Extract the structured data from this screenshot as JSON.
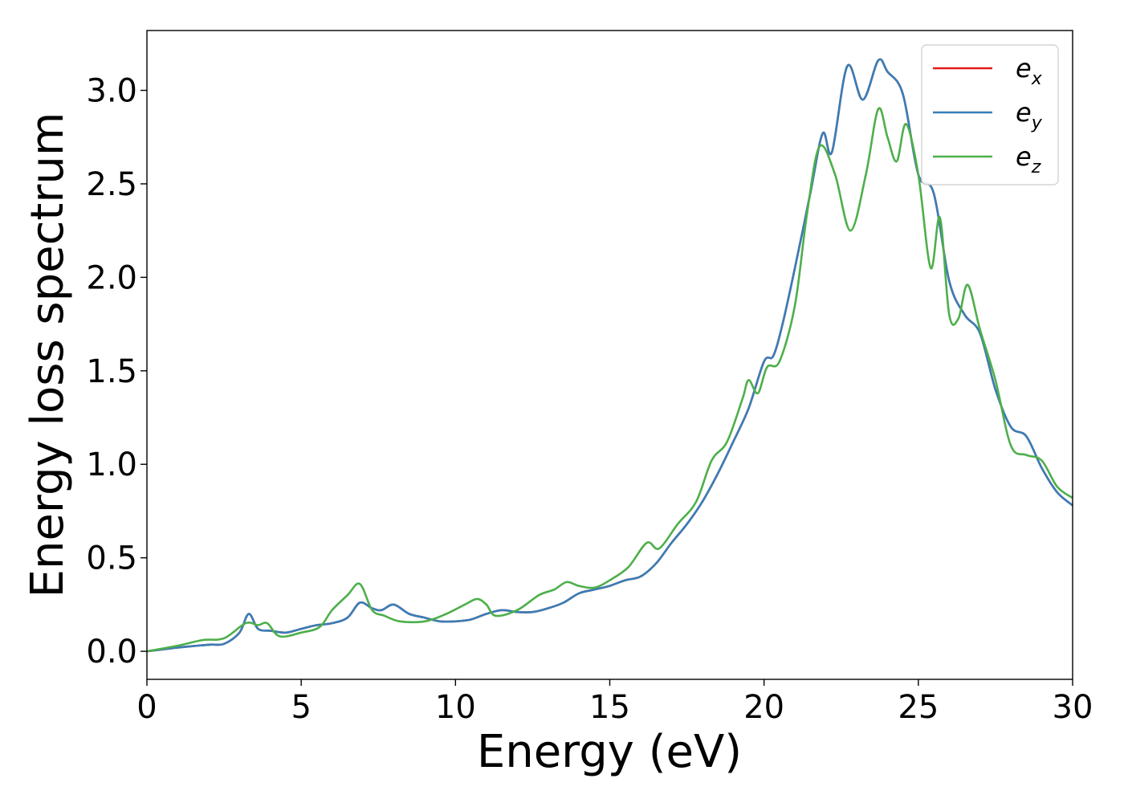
{
  "chart_data": {
    "type": "line",
    "title": "",
    "xlabel": "Energy (eV)",
    "ylabel": "Energy loss spectrum",
    "xlim": [
      0,
      30
    ],
    "ylim": [
      -0.15,
      3.32
    ],
    "x_ticks": [
      "0",
      "5",
      "10",
      "15",
      "20",
      "25",
      "30"
    ],
    "y_ticks": [
      "0.0",
      "0.5",
      "1.0",
      "1.5",
      "2.0",
      "2.5",
      "3.0"
    ],
    "x_tick_values": [
      0,
      5,
      10,
      15,
      20,
      25,
      30
    ],
    "y_tick_values": [
      0.0,
      0.5,
      1.0,
      1.5,
      2.0,
      2.5,
      3.0
    ],
    "grid": false,
    "legend_position": "top-right",
    "series": [
      {
        "name": "e_x",
        "label_base": "e",
        "label_sub": "x",
        "color": "#e41a1c",
        "x": [
          0,
          1,
          2,
          2.5,
          3,
          3.3,
          3.6,
          4,
          4.5,
          5,
          5.5,
          6,
          6.5,
          6.9,
          7.3,
          7.6,
          8,
          8.5,
          9,
          9.5,
          10,
          10.5,
          11,
          11.5,
          12,
          12.5,
          13,
          13.5,
          14,
          14.5,
          15,
          15.5,
          16,
          16.5,
          17,
          17.5,
          18,
          18.5,
          19,
          19.5,
          20,
          20.3,
          20.6,
          21,
          21.5,
          21.9,
          22.2,
          22.7,
          23.2,
          23.7,
          24,
          24.5,
          25,
          25.5,
          26,
          26.5,
          27,
          27.5,
          28,
          28.5,
          29,
          29.5,
          30
        ],
        "y": [
          0.0,
          0.02,
          0.035,
          0.04,
          0.1,
          0.2,
          0.12,
          0.11,
          0.1,
          0.12,
          0.14,
          0.15,
          0.18,
          0.26,
          0.23,
          0.22,
          0.25,
          0.2,
          0.18,
          0.16,
          0.16,
          0.17,
          0.2,
          0.22,
          0.21,
          0.21,
          0.23,
          0.26,
          0.31,
          0.33,
          0.35,
          0.38,
          0.4,
          0.47,
          0.58,
          0.68,
          0.8,
          0.95,
          1.12,
          1.3,
          1.55,
          1.58,
          1.75,
          2.05,
          2.45,
          2.77,
          2.67,
          3.13,
          2.95,
          3.16,
          3.1,
          2.98,
          2.55,
          2.45,
          1.98,
          1.8,
          1.7,
          1.4,
          1.2,
          1.15,
          0.98,
          0.85,
          0.78
        ]
      },
      {
        "name": "e_y",
        "label_base": "e",
        "label_sub": "y",
        "color": "#377eb8",
        "x": [
          0,
          1,
          2,
          2.5,
          3,
          3.3,
          3.6,
          4,
          4.5,
          5,
          5.5,
          6,
          6.5,
          6.9,
          7.3,
          7.6,
          8,
          8.5,
          9,
          9.5,
          10,
          10.5,
          11,
          11.5,
          12,
          12.5,
          13,
          13.5,
          14,
          14.5,
          15,
          15.5,
          16,
          16.5,
          17,
          17.5,
          18,
          18.5,
          19,
          19.5,
          20,
          20.3,
          20.6,
          21,
          21.5,
          21.9,
          22.2,
          22.7,
          23.2,
          23.7,
          24,
          24.5,
          25,
          25.5,
          26,
          26.5,
          27,
          27.5,
          28,
          28.5,
          29,
          29.5,
          30
        ],
        "y": [
          0.0,
          0.02,
          0.035,
          0.04,
          0.1,
          0.2,
          0.12,
          0.11,
          0.1,
          0.12,
          0.14,
          0.15,
          0.18,
          0.26,
          0.23,
          0.22,
          0.25,
          0.2,
          0.18,
          0.16,
          0.16,
          0.17,
          0.2,
          0.22,
          0.21,
          0.21,
          0.23,
          0.26,
          0.31,
          0.33,
          0.35,
          0.38,
          0.4,
          0.47,
          0.58,
          0.68,
          0.8,
          0.95,
          1.12,
          1.3,
          1.55,
          1.58,
          1.75,
          2.05,
          2.45,
          2.77,
          2.67,
          3.13,
          2.95,
          3.16,
          3.1,
          2.98,
          2.55,
          2.45,
          1.98,
          1.8,
          1.7,
          1.4,
          1.2,
          1.15,
          0.98,
          0.85,
          0.78
        ]
      },
      {
        "name": "e_z",
        "label_base": "e",
        "label_sub": "z",
        "color": "#4daf4a",
        "x": [
          0,
          1,
          1.8,
          2.5,
          3.2,
          3.6,
          3.9,
          4.3,
          5,
          5.6,
          6,
          6.5,
          6.9,
          7.3,
          7.7,
          8.2,
          9,
          9.7,
          10.3,
          10.7,
          11,
          11.3,
          12,
          12.7,
          13.2,
          13.6,
          14,
          14.5,
          15,
          15.6,
          16.2,
          16.6,
          17.2,
          17.8,
          18.3,
          18.8,
          19.3,
          19.5,
          19.8,
          20.1,
          20.5,
          21,
          21.4,
          21.8,
          22.3,
          22.8,
          23.3,
          23.7,
          24,
          24.3,
          24.6,
          25,
          25.4,
          25.7,
          26,
          26.3,
          26.6,
          27,
          27.5,
          28,
          28.5,
          29,
          29.5,
          30
        ],
        "y": [
          0.0,
          0.03,
          0.06,
          0.07,
          0.15,
          0.14,
          0.15,
          0.08,
          0.1,
          0.13,
          0.22,
          0.3,
          0.36,
          0.22,
          0.19,
          0.16,
          0.16,
          0.2,
          0.25,
          0.28,
          0.25,
          0.19,
          0.22,
          0.3,
          0.33,
          0.37,
          0.35,
          0.34,
          0.38,
          0.45,
          0.58,
          0.55,
          0.68,
          0.8,
          1.02,
          1.12,
          1.35,
          1.45,
          1.38,
          1.52,
          1.55,
          1.85,
          2.35,
          2.7,
          2.55,
          2.25,
          2.55,
          2.9,
          2.75,
          2.62,
          2.82,
          2.55,
          2.05,
          2.32,
          1.8,
          1.78,
          1.96,
          1.72,
          1.45,
          1.1,
          1.05,
          1.02,
          0.88,
          0.82
        ]
      }
    ]
  }
}
